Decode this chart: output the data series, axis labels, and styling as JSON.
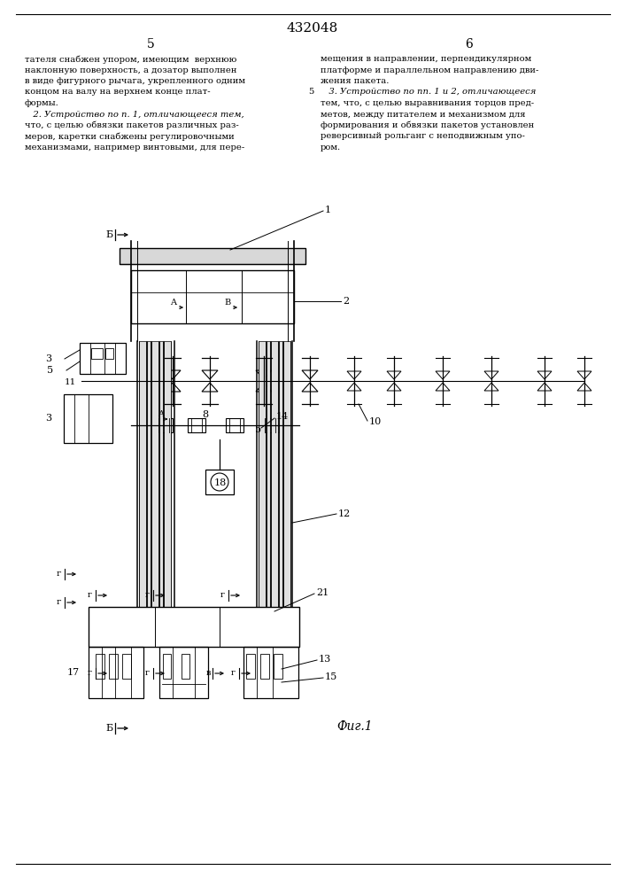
{
  "patent_number": "432048",
  "page_left": "5",
  "page_right": "6",
  "text_left": [
    "тателя снабжен упором, имеющим  верхнюю",
    "наклонную поверхность, а дозатор выполнен",
    "в виде фигурного рычага, укрепленного одним",
    "концом на валу на верхнем конце плат-",
    "формы.",
    "   2. Устройство по п. 1, отличающееся тем,",
    "что, с целью обвязки пакетов различных раз-",
    "меров, каретки снабжены регулировочными",
    "механизмами, например винтовыми, для пере-"
  ],
  "text_right": [
    "мещения в направлении, перпендикулярном",
    "платформе и параллельном направлению дви-",
    "жения пакета.",
    "   3. Устройство по пп. 1 и 2, отличающееся",
    "тем, что, с целью выравнивания торцов пред-",
    "метов, между питателем и механизмом для",
    "формирования и обвязки пакетов установлен",
    "реверсивный рольганг с неподвижным упо-",
    "ром."
  ],
  "fig_label": "Фиг.1",
  "background_color": "#ffffff",
  "text_color": "#000000",
  "line_color": "#000000"
}
